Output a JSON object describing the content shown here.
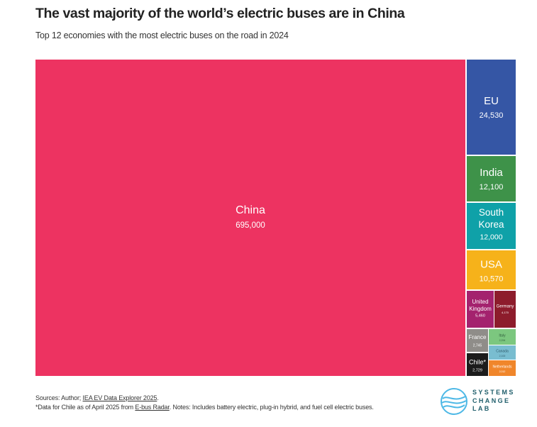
{
  "title": "The vast majority of the world’s electric buses are in China",
  "subtitle": "Top 12 economies with the most electric buses on the road in 2024",
  "chart_data": {
    "type": "treemap",
    "series_label": "Electric buses on the road, 2024",
    "items": [
      {
        "name": "China",
        "value": 695000,
        "label": "695,000",
        "color": "#ed3361"
      },
      {
        "name": "EU",
        "value": 24530,
        "label": "24,530",
        "color": "#3556a5"
      },
      {
        "name": "India",
        "value": 12100,
        "label": "12,100",
        "color": "#3e9249"
      },
      {
        "name": "South Korea",
        "value": 12000,
        "label": "12,000",
        "color": "#0fa1a8"
      },
      {
        "name": "USA",
        "value": 10570,
        "label": "10,570",
        "color": "#f6b21a"
      },
      {
        "name": "United Kingdom",
        "value": 5460,
        "label": "5,460",
        "color": "#a4226e"
      },
      {
        "name": "Germany",
        "value": 4170,
        "label": "4,170",
        "color": "#8d1c2c"
      },
      {
        "name": "France",
        "value": 2745,
        "label": "2,745",
        "color": "#8f8d89"
      },
      {
        "name": "Italy",
        "value": 2294,
        "label": "2,294",
        "color": "#7cc77f"
      },
      {
        "name": "Chile*",
        "value": 2729,
        "label": "2,729",
        "color": "#1c1c1c"
      },
      {
        "name": "Canada",
        "value": 2100,
        "label": "2,100",
        "color": "#79bdd0"
      },
      {
        "name": "Netherlands",
        "value": 2012,
        "label": "2,012",
        "color": "#f0862b"
      }
    ]
  },
  "footer": {
    "line1_prefix": "Sources: Author; ",
    "line1_link": "IEA EV Data Explorer 2025",
    "line1_suffix": ".",
    "line2_prefix": "*Data for Chile as of April 2025 from ",
    "line2_link": "E-bus Radar",
    "line2_suffix": ". Notes: Includes battery electric, plug-in hybrid, and fuel cell electric buses."
  },
  "logo": {
    "line1": "SYSTEMS",
    "line2": "CHANGE",
    "line3": "LAB",
    "color": "#1f5e6b",
    "mark_color": "#4db8e6"
  }
}
